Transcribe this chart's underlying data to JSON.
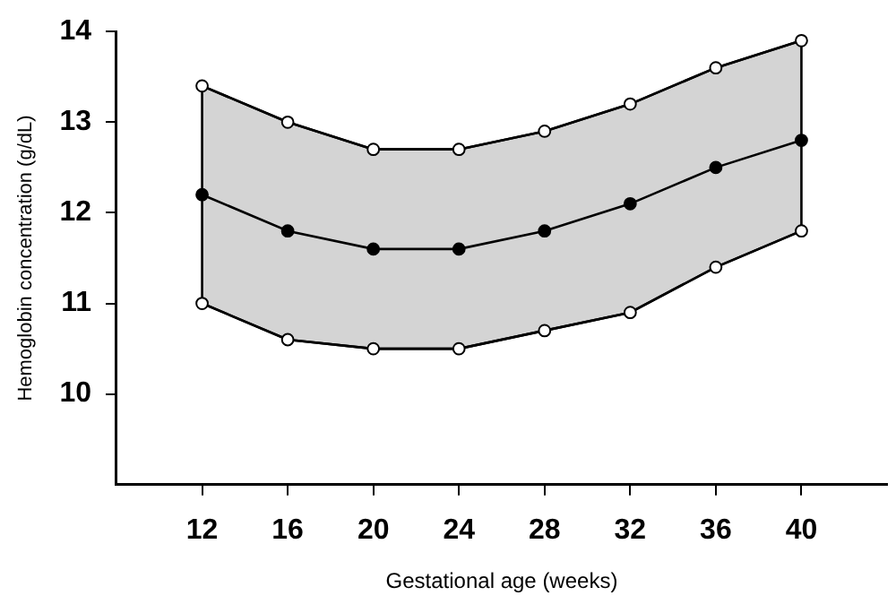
{
  "chart_data": {
    "type": "line",
    "xlabel": "Gestational age (weeks)",
    "ylabel": "Hemoglobin concentration (g/dL)",
    "x": [
      12,
      16,
      20,
      24,
      28,
      32,
      36,
      40
    ],
    "series": [
      {
        "color": "#000000",
        "values": [
          13.4,
          13.0,
          12.7,
          12.7,
          12.9,
          13.2,
          13.6,
          13.9
        ]
      },
      {
        "color": "#000000",
        "values": [
          11.0,
          10.6,
          10.5,
          10.5,
          10.7,
          10.9,
          11.4,
          11.8
        ]
      },
      {
        "color": "#000000",
        "values": [
          12.2,
          11.8,
          11.6,
          11.6,
          11.8,
          12.1,
          12.5,
          12.8
        ],
        "lower": [
          11.0,
          10.6,
          10.5,
          10.5,
          10.7,
          10.9,
          11.4,
          11.8
        ],
        "upper": [
          13.4,
          13.0,
          12.7,
          12.7,
          12.9,
          13.2,
          13.6,
          13.9
        ]
      }
    ],
    "xlim": [
      8,
      44
    ],
    "xticks": [
      12,
      16,
      20,
      24,
      28,
      32,
      36,
      40
    ],
    "ylim": [
      9,
      14
    ],
    "yticks": [
      10,
      11,
      12,
      13,
      14
    ],
    "grid": false,
    "legend": false,
    "marker": "circle",
    "line_style": "solid"
  }
}
